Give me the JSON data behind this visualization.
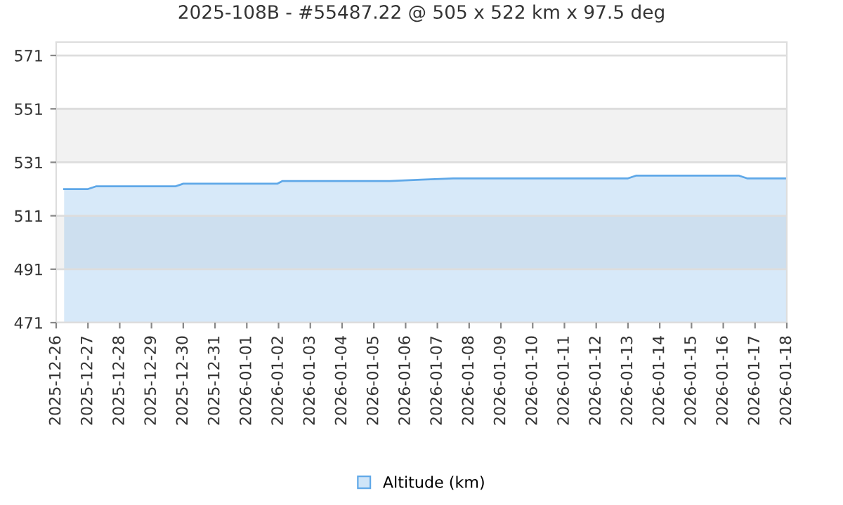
{
  "chart_data": {
    "type": "area",
    "title": "2025-108B - #55487.22 @ 505 x 522 km x 97.5 deg",
    "series": [
      {
        "name": "Altitude (km)",
        "color": "#5fa8e8",
        "x": [
          "2025-12-26T06:00",
          "2025-12-27T00:00",
          "2025-12-27T06:00",
          "2025-12-29T18:00",
          "2025-12-30T00:00",
          "2026-01-01T23:00",
          "2026-01-02T03:00",
          "2026-01-05T12:00",
          "2026-01-06T12:00",
          "2026-01-07T12:00",
          "2026-01-13T00:00",
          "2026-01-13T06:00",
          "2026-01-16T12:00",
          "2026-01-16T18:00",
          "2026-01-18T00:00"
        ],
        "values": [
          521,
          521,
          522,
          522,
          523,
          523,
          524,
          524,
          524.5,
          525,
          525,
          526,
          526,
          525,
          525
        ]
      }
    ],
    "xlim": [
      "2025-12-26",
      "2026-01-18"
    ],
    "xticks": [
      "2025-12-26",
      "2025-12-27",
      "2025-12-28",
      "2025-12-29",
      "2025-12-30",
      "2025-12-31",
      "2026-01-01",
      "2026-01-02",
      "2026-01-03",
      "2026-01-04",
      "2026-01-05",
      "2026-01-06",
      "2026-01-07",
      "2026-01-08",
      "2026-01-09",
      "2026-01-10",
      "2026-01-11",
      "2026-01-12",
      "2026-01-13",
      "2026-01-14",
      "2026-01-15",
      "2026-01-16",
      "2026-01-17",
      "2026-01-18"
    ],
    "ylim": [
      471,
      576
    ],
    "yticks": [
      471,
      491,
      511,
      531,
      551,
      571
    ],
    "bands": [
      {
        "axis": "y",
        "from": 491,
        "to": 511,
        "color": "#f2f2f2"
      },
      {
        "axis": "y",
        "from": 531,
        "to": 551,
        "color": "#f2f2f2"
      }
    ],
    "grid": "y",
    "legend": "bottom"
  }
}
